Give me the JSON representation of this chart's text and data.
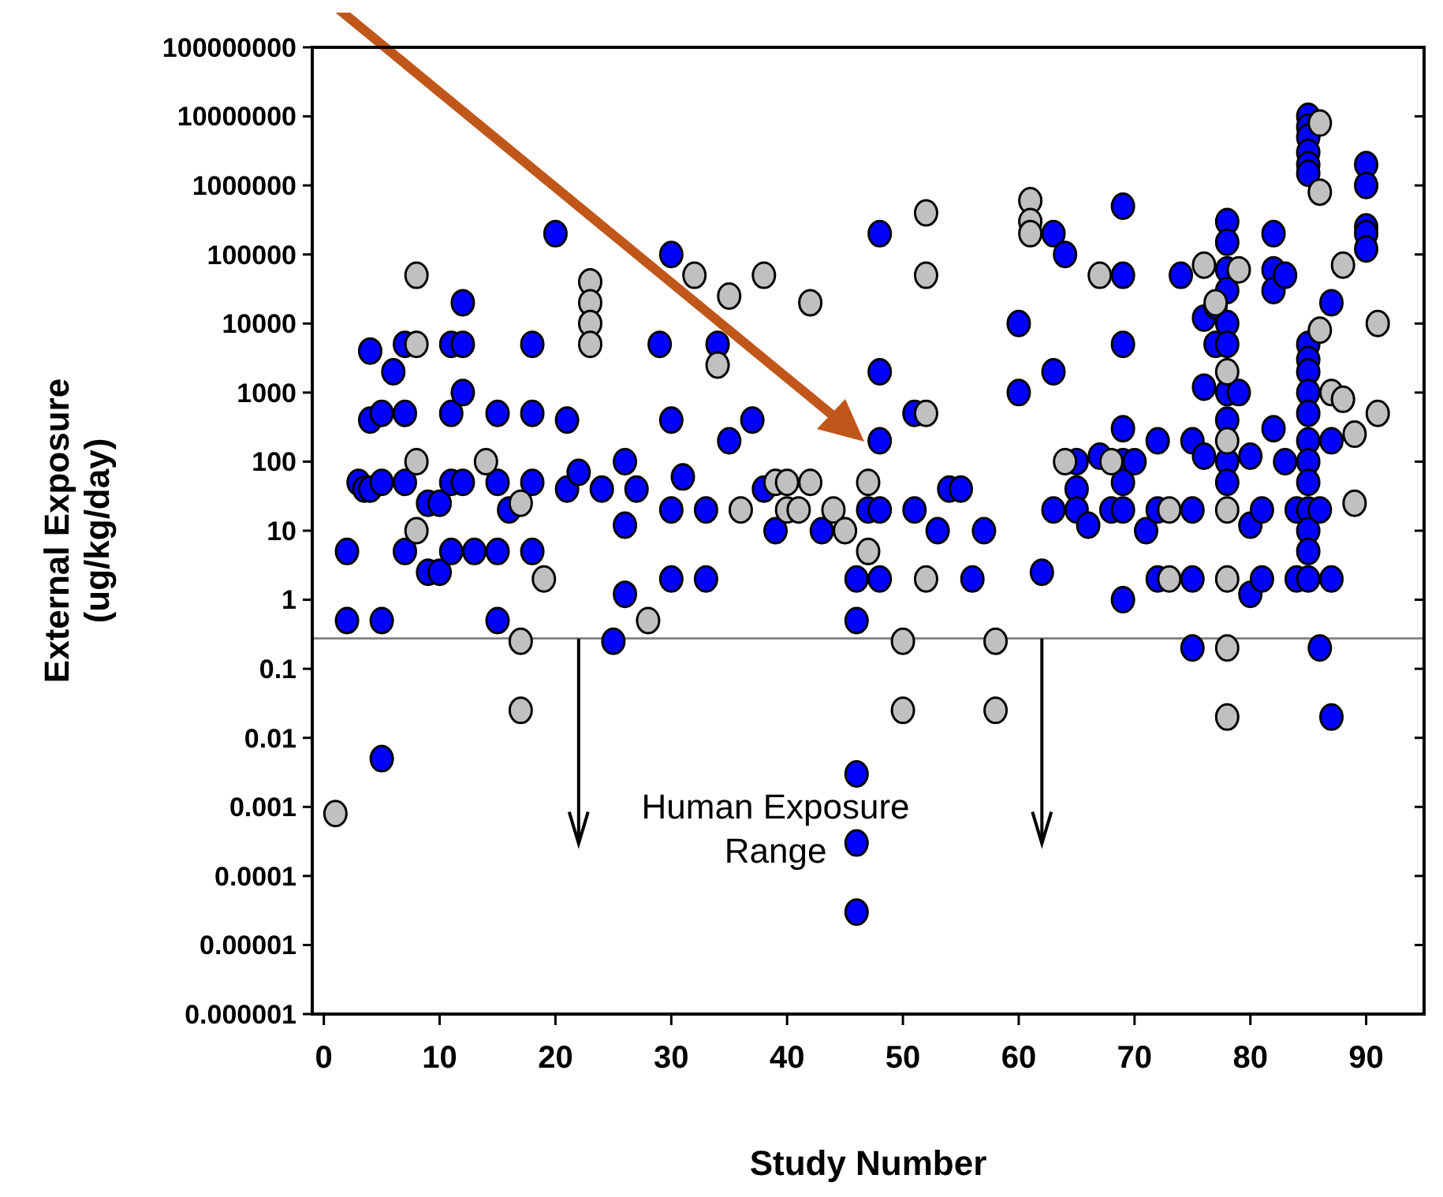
{
  "chart_data": {
    "type": "scatter",
    "xlabel": "Study Number",
    "ylabel": "External Exposure\n(ug/kg/day)",
    "log": "y",
    "marker": "circle",
    "grid": false,
    "xlim": [
      -1,
      95
    ],
    "xticks": [
      0,
      10,
      20,
      30,
      40,
      50,
      60,
      70,
      80,
      90
    ],
    "ylim": [
      1e-06,
      100000000
    ],
    "yticks": [
      {
        "value": 1e-06,
        "label": "0.000001"
      },
      {
        "value": 1e-05,
        "label": "0.00001"
      },
      0.0001,
      0.001,
      0.01,
      0.1,
      1,
      10,
      100,
      1000,
      10000,
      100000,
      1000000,
      10000000,
      100000000
    ],
    "ref_lines": [
      {
        "axis": "y",
        "value": 0.275,
        "color": "#808080"
      }
    ],
    "annotations": [
      "Human Exposure Range"
    ],
    "series": [
      {
        "color": "#0000ff",
        "x": [
          2,
          2,
          3,
          3.5,
          4,
          4,
          4,
          5,
          5,
          5,
          5,
          6,
          7,
          7,
          7,
          7,
          9,
          9,
          10,
          10,
          11,
          11,
          11,
          11,
          12,
          12,
          12,
          12,
          13,
          15,
          15,
          15,
          15,
          16,
          18,
          18,
          18,
          18,
          20,
          21,
          21,
          22,
          24,
          25,
          26,
          26,
          26,
          27,
          29,
          30,
          30,
          30,
          30,
          31,
          33,
          33,
          34,
          35,
          37,
          38,
          39,
          43,
          46,
          46,
          46,
          46,
          46,
          47,
          48,
          48,
          48,
          48,
          48,
          51,
          51,
          53,
          54,
          55,
          56,
          57,
          60,
          60,
          62,
          63,
          63,
          63,
          64,
          65,
          65,
          65,
          66,
          67,
          68,
          69,
          69,
          69,
          69,
          69,
          69,
          69,
          69,
          70,
          71,
          72,
          72,
          72,
          74,
          75,
          75,
          75,
          75,
          76,
          76,
          76,
          77,
          77,
          78,
          78,
          78,
          78,
          78,
          78,
          78,
          78,
          78,
          78,
          79,
          80,
          80,
          80,
          81,
          81,
          82,
          82,
          82,
          82,
          83,
          83,
          84,
          84,
          85,
          85,
          85,
          85,
          85,
          85,
          85,
          85,
          85,
          85,
          85,
          85,
          85,
          85,
          85,
          85,
          85,
          85,
          86,
          86,
          87,
          87,
          87,
          87,
          90,
          90,
          90,
          90,
          90
        ],
        "values": [
          5,
          0.5,
          50,
          40,
          4000,
          400,
          40,
          500,
          50,
          0.5,
          0.005,
          2000,
          5000,
          500,
          50,
          5,
          25,
          2.5,
          25,
          2.5,
          5000,
          500,
          50,
          5,
          20000,
          5000,
          1000,
          50,
          5,
          500,
          50,
          5,
          0.5,
          20,
          5000,
          500,
          50,
          5,
          200000,
          400,
          40,
          70,
          40,
          0.25,
          100,
          12,
          1.2,
          40,
          5000,
          100000,
          400,
          20,
          2,
          60,
          20,
          2,
          5000,
          200,
          400,
          40,
          10,
          10,
          2,
          0.5,
          0.003,
          0.0003,
          3e-05,
          20,
          200000,
          2000,
          200,
          20,
          2,
          500,
          20,
          10,
          40,
          40,
          2,
          10,
          10000,
          1000,
          2.5,
          200000,
          2000,
          20,
          100000,
          100,
          40,
          20,
          12,
          120,
          20,
          500000,
          50000,
          5000,
          300,
          100,
          50,
          20,
          1,
          100,
          10,
          200,
          20,
          2,
          50000,
          200,
          20,
          2,
          0.2,
          12000,
          1200,
          120,
          18000,
          5000,
          300000,
          150000,
          60000,
          30000,
          10000,
          5000,
          1000,
          400,
          100,
          50,
          1000,
          120,
          12,
          1.2,
          20,
          2,
          200000,
          60000,
          30000,
          300,
          50000,
          100,
          20,
          2,
          10000000,
          7000000,
          5000000,
          3000000,
          2000000,
          1500000,
          5000,
          3000,
          2000,
          1000,
          500,
          200,
          100,
          50,
          20,
          10,
          5,
          2,
          20,
          0.2,
          20000,
          200,
          2,
          0.02,
          2000000,
          1000000,
          250000,
          200000,
          120000
        ]
      },
      {
        "color": "#c0c0c0",
        "x": [
          1,
          8,
          8,
          8,
          8,
          14,
          17,
          17,
          17,
          19,
          23,
          23,
          23,
          23,
          28,
          32,
          34,
          35,
          36,
          38,
          39,
          40,
          40,
          41,
          42,
          42,
          44,
          45,
          47,
          47,
          50,
          50,
          52,
          52,
          52,
          52,
          58,
          58,
          61,
          61,
          61,
          64,
          67,
          68,
          73,
          73,
          76,
          77,
          78,
          78,
          78,
          78,
          78,
          78,
          79,
          86,
          86,
          86,
          87,
          88,
          88,
          89,
          89,
          91,
          91
        ],
        "values": [
          0.0008,
          50000,
          5000,
          100,
          10,
          100,
          25,
          0.25,
          0.025,
          2,
          40000,
          20000,
          10000,
          5000,
          0.5,
          50000,
          2500,
          25000,
          20,
          50000,
          50,
          20,
          50,
          20,
          20000,
          50,
          20,
          10,
          50,
          5,
          0.25,
          0.025,
          400000,
          50000,
          500,
          2,
          0.25,
          0.025,
          600000,
          300000,
          200000,
          100,
          50000,
          100,
          20,
          2,
          70000,
          20000,
          2000,
          200,
          20,
          2,
          0.2,
          0.02,
          60000,
          8000000,
          800000,
          8000,
          1000,
          70000,
          800,
          250,
          25,
          10000,
          500
        ]
      }
    ]
  }
}
